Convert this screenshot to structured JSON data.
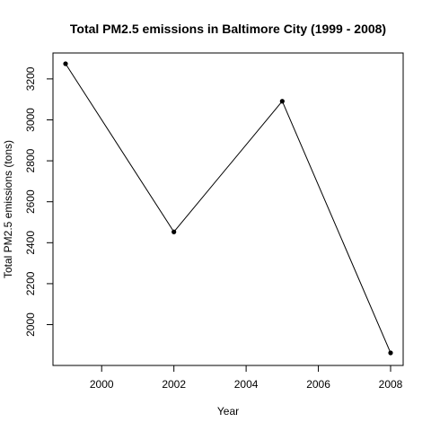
{
  "chart_data": {
    "type": "line",
    "title": "Total PM2.5 emissions in Baltimore City (1999 - 2008)",
    "xlabel": "Year",
    "ylabel": "Total PM2.5 emissions (tons)",
    "x": [
      1999,
      2002,
      2005,
      2008
    ],
    "series": [
      {
        "values": [
          3274,
          2453,
          3091,
          1862
        ]
      }
    ],
    "xlim": [
      1999,
      2008
    ],
    "ylim": [
      1862,
      3274
    ],
    "xticks": [
      2000,
      2002,
      2004,
      2006,
      2008
    ],
    "yticks": [
      2000,
      2200,
      2400,
      2600,
      2800,
      3000,
      3200
    ],
    "grid": false,
    "legend": "none",
    "line_color": "#000000",
    "point_color": "#000000"
  }
}
